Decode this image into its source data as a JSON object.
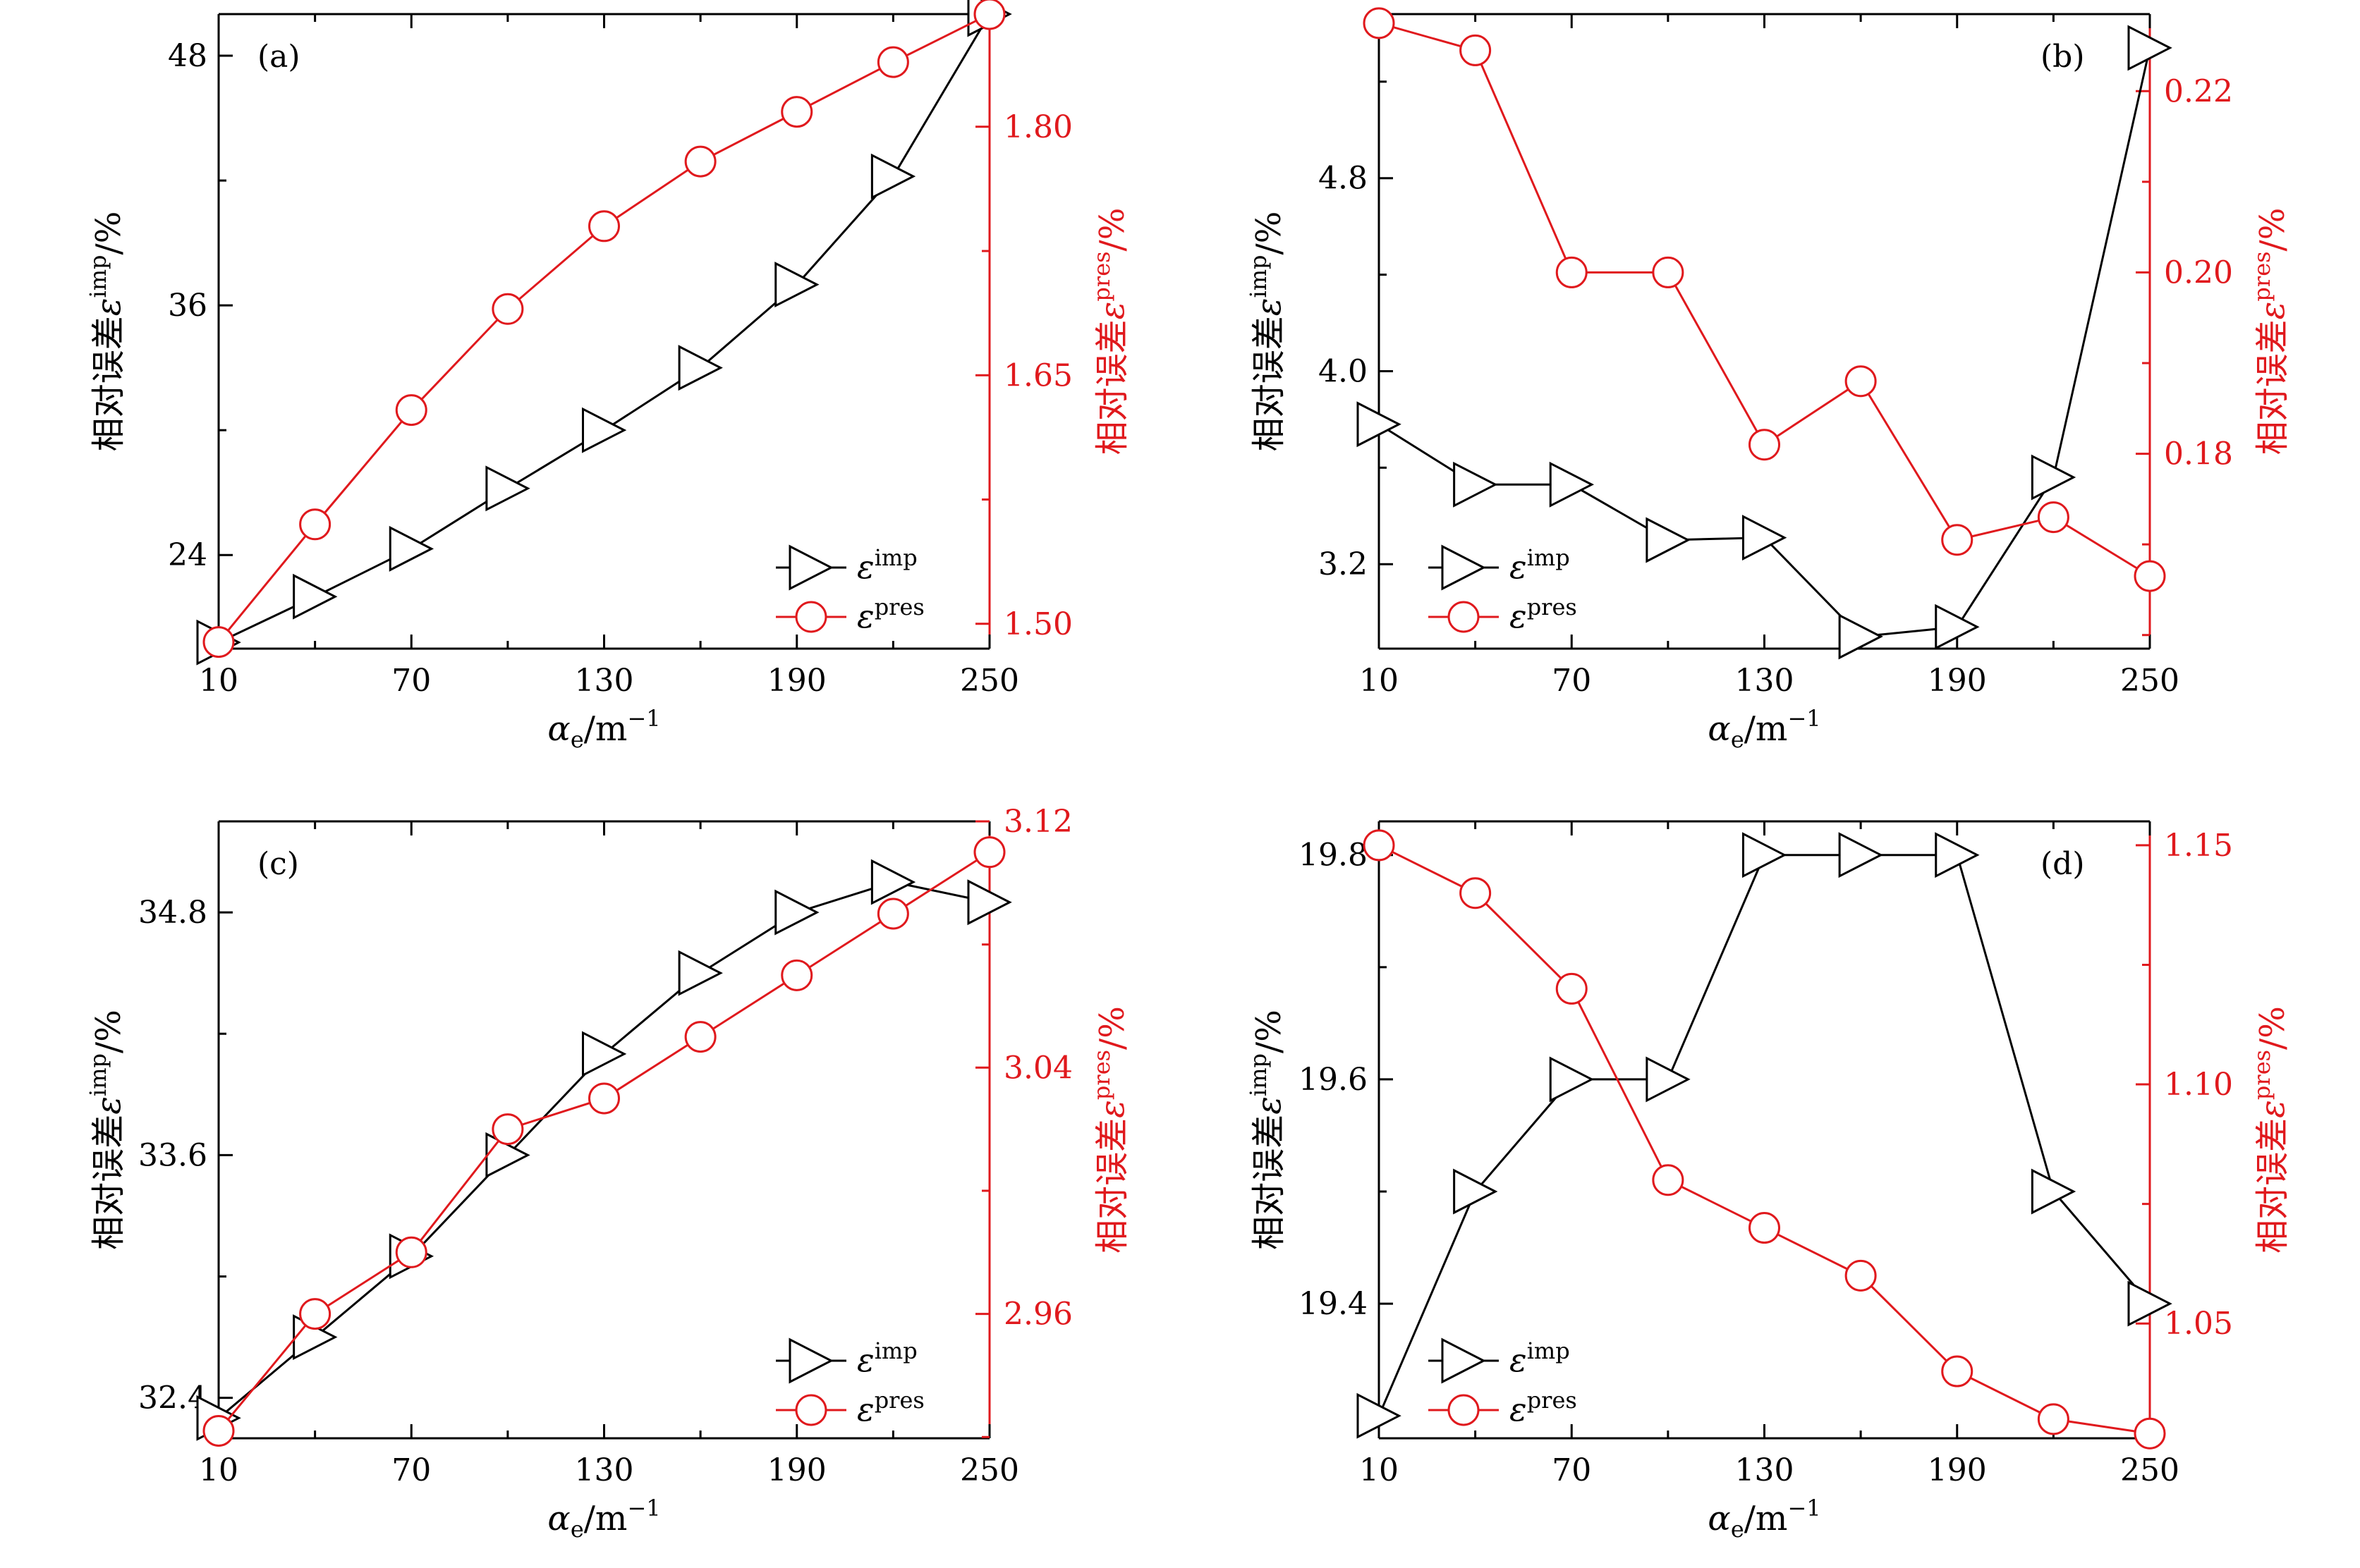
{
  "chart_data": [
    {
      "type": "line",
      "panel_label": "(a)",
      "xlabel_base": "α",
      "xlabel_sub": "e",
      "xlabel_unit": "/m",
      "xlabel_exp": "−1",
      "x": [
        10,
        40,
        70,
        100,
        130,
        160,
        190,
        220,
        250
      ],
      "xticks": [
        "10",
        "70",
        "130",
        "190",
        "250"
      ],
      "xlim": [
        10,
        250
      ],
      "left_axis": {
        "label_prefix": "相对误差",
        "label_symbol": "ε",
        "label_sup": "imp",
        "label_suffix": "/%",
        "ylim": [
          19.5,
          50.0
        ],
        "ticks": [
          "24",
          "36",
          "48"
        ],
        "minor_step": 6,
        "color": "#000000"
      },
      "right_axis": {
        "label_prefix": "相对误差",
        "label_symbol": "ε",
        "label_sup": "pres",
        "label_suffix": "/%",
        "ylim": [
          1.485,
          1.868
        ],
        "ticks": [
          "1.50",
          "1.65",
          "1.80"
        ],
        "minor_step": 0.075,
        "color": "#e0191d"
      },
      "series": [
        {
          "name": "ε imp",
          "axis": "left",
          "marker": "triangle-right",
          "color": "#000000",
          "values": [
            19.8,
            22.0,
            24.3,
            27.2,
            30.0,
            33.0,
            37.0,
            42.2,
            50.0
          ]
        },
        {
          "name": "ε pres",
          "axis": "right",
          "marker": "circle",
          "color": "#e0191d",
          "values": [
            1.489,
            1.56,
            1.629,
            1.69,
            1.74,
            1.779,
            1.809,
            1.839,
            1.868
          ]
        }
      ],
      "legend": [
        {
          "symbol": "ε",
          "sup": "imp"
        },
        {
          "symbol": "ε",
          "sup": "pres"
        }
      ],
      "legend_position": "bottom-right"
    },
    {
      "type": "line",
      "panel_label": "(b)",
      "xlabel_base": "α",
      "xlabel_sub": "e",
      "xlabel_unit": "/m",
      "xlabel_exp": "−1",
      "x": [
        10,
        40,
        70,
        100,
        130,
        160,
        190,
        220,
        250
      ],
      "xticks": [
        "10",
        "70",
        "130",
        "190",
        "250"
      ],
      "xlim": [
        10,
        250
      ],
      "left_axis": {
        "label_prefix": "相对误差",
        "label_symbol": "ε",
        "label_sup": "imp",
        "label_suffix": "/%",
        "ylim": [
          2.85,
          5.48
        ],
        "ticks": [
          "3.2",
          "4.0",
          "4.8"
        ],
        "minor_step": 0.4,
        "color": "#000000"
      },
      "right_axis": {
        "label_prefix": "相对误差",
        "label_symbol": "ε",
        "label_sup": "pres",
        "label_suffix": "/%",
        "ylim": [
          0.1585,
          0.2285
        ],
        "ticks": [
          "0.18",
          "0.20",
          "0.22"
        ],
        "minor_step": 0.01,
        "color": "#e0191d"
      },
      "series": [
        {
          "name": "ε imp",
          "axis": "left",
          "marker": "triangle-right",
          "color": "#000000",
          "values": [
            3.78,
            3.53,
            3.53,
            3.3,
            3.31,
            2.9,
            2.94,
            3.56,
            5.34
          ]
        },
        {
          "name": "ε pres",
          "axis": "right",
          "marker": "circle",
          "color": "#e0191d",
          "values": [
            0.2275,
            0.2245,
            0.2,
            0.2,
            0.181,
            0.188,
            0.1705,
            0.173,
            0.1665
          ]
        }
      ],
      "legend": [
        {
          "symbol": "ε",
          "sup": "imp"
        },
        {
          "symbol": "ε",
          "sup": "pres"
        }
      ],
      "legend_position": "bottom-left"
    },
    {
      "type": "line",
      "panel_label": "(c)",
      "xlabel_base": "α",
      "xlabel_sub": "e",
      "xlabel_unit": "/m",
      "xlabel_exp": "−1",
      "x": [
        10,
        40,
        70,
        100,
        130,
        160,
        190,
        220,
        250
      ],
      "xticks": [
        "10",
        "70",
        "130",
        "190",
        "250"
      ],
      "xlim": [
        10,
        250
      ],
      "left_axis": {
        "label_prefix": "相对误差",
        "label_symbol": "ε",
        "label_sup": "imp",
        "label_suffix": "/%",
        "ylim": [
          32.2,
          35.25
        ],
        "ticks": [
          "32.4",
          "33.6",
          "34.8"
        ],
        "minor_step": 0.6,
        "color": "#000000"
      },
      "right_axis": {
        "label_prefix": "相对误差",
        "label_symbol": "ε",
        "label_sup": "pres",
        "label_suffix": "/%",
        "ylim": [
          2.9196,
          3.12
        ],
        "ticks": [
          "2.96",
          "3.04",
          "3.12"
        ],
        "minor_step": 0.04,
        "color": "#e0191d"
      },
      "series": [
        {
          "name": "ε imp",
          "axis": "left",
          "marker": "triangle-right",
          "color": "#000000",
          "values": [
            32.3,
            32.7,
            33.1,
            33.6,
            34.1,
            34.5,
            34.8,
            34.95,
            34.85
          ]
        },
        {
          "name": "ε pres",
          "axis": "right",
          "marker": "circle",
          "color": "#e0191d",
          "values": [
            2.922,
            2.96,
            2.98,
            3.02,
            3.03,
            3.05,
            3.07,
            3.09,
            3.11
          ]
        }
      ],
      "legend": [
        {
          "symbol": "ε",
          "sup": "imp"
        },
        {
          "symbol": "ε",
          "sup": "pres"
        }
      ],
      "legend_position": "bottom-right"
    },
    {
      "type": "line",
      "panel_label": "(d)",
      "xlabel_base": "α",
      "xlabel_sub": "e",
      "xlabel_unit": "/m",
      "xlabel_exp": "−1",
      "x": [
        10,
        40,
        70,
        100,
        130,
        160,
        190,
        220,
        250
      ],
      "xticks": [
        "10",
        "70",
        "130",
        "190",
        "250"
      ],
      "xlim": [
        10,
        250
      ],
      "left_axis": {
        "label_prefix": "相对误差",
        "label_symbol": "ε",
        "label_sup": "imp",
        "label_suffix": "/%",
        "ylim": [
          19.28,
          19.83
        ],
        "ticks": [
          "19.4",
          "19.6",
          "19.8"
        ],
        "minor_step": 0.1,
        "color": "#000000"
      },
      "right_axis": {
        "label_prefix": "相对误差",
        "label_symbol": "ε",
        "label_sup": "pres",
        "label_suffix": "/%",
        "ylim": [
          1.026,
          1.155
        ],
        "ticks": [
          "1.05",
          "1.10",
          "1.15"
        ],
        "minor_step": 0.025,
        "color": "#e0191d"
      },
      "series": [
        {
          "name": "ε imp",
          "axis": "left",
          "marker": "triangle-right",
          "color": "#000000",
          "values": [
            19.3,
            19.5,
            19.6,
            19.6,
            19.8,
            19.8,
            19.8,
            19.5,
            19.4
          ]
        },
        {
          "name": "ε pres",
          "axis": "right",
          "marker": "circle",
          "color": "#e0191d",
          "values": [
            1.15,
            1.14,
            1.12,
            1.08,
            1.07,
            1.06,
            1.04,
            1.03,
            1.027
          ]
        }
      ],
      "legend": [
        {
          "symbol": "ε",
          "sup": "imp"
        },
        {
          "symbol": "ε",
          "sup": "pres"
        }
      ],
      "legend_position": "bottom-left"
    }
  ]
}
